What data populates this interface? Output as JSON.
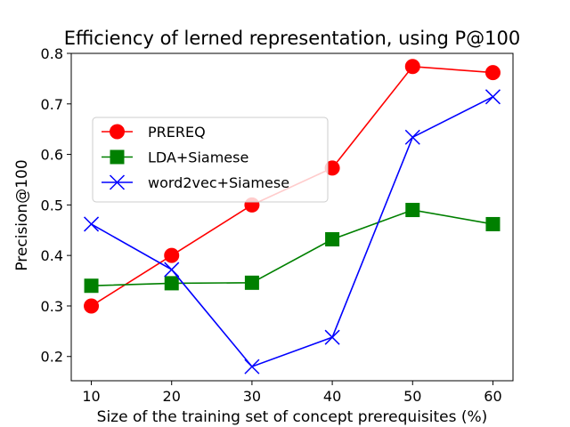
{
  "chart_data": {
    "type": "line",
    "title": "Efficiency of lerned representation, using P@100",
    "xlabel": "Size of the training set of concept prerequisites (%)",
    "ylabel": "Precision@100",
    "x": [
      10,
      20,
      30,
      40,
      50,
      60
    ],
    "xticks": [
      "10",
      "20",
      "30",
      "40",
      "50",
      "60"
    ],
    "yticks": [
      "0.2",
      "0.3",
      "0.4",
      "0.5",
      "0.6",
      "0.7",
      "0.8"
    ],
    "xlim": [
      7.5,
      62.5
    ],
    "ylim": [
      0.152,
      0.8
    ],
    "grid": false,
    "legend_position": "upper-left",
    "series": [
      {
        "name": "PREREQ",
        "color": "#ff0000",
        "marker": "circle",
        "values": [
          0.3,
          0.4,
          0.5,
          0.573,
          0.774,
          0.762
        ]
      },
      {
        "name": "LDA+Siamese",
        "color": "#008000",
        "marker": "square",
        "values": [
          0.34,
          0.345,
          0.346,
          0.432,
          0.49,
          0.462
        ]
      },
      {
        "name": "word2vec+Siamese",
        "color": "#0000ff",
        "marker": "x",
        "values": [
          0.462,
          0.372,
          0.18,
          0.238,
          0.634,
          0.714
        ]
      }
    ]
  }
}
